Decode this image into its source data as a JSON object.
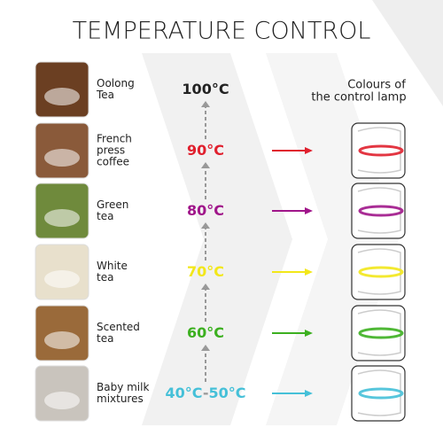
{
  "title": "TEMPERATURE CONTROL",
  "lamp_heading": [
    "Colours of",
    "the control lamp"
  ],
  "rows": [
    {
      "label": [
        "Oolong",
        "Tea"
      ],
      "temperature": [
        {
          "text": "100°C",
          "color": "#222222"
        }
      ],
      "photo": "#6b3f22"
    },
    {
      "label": [
        "French",
        "press",
        "coffee"
      ],
      "temperature": [
        {
          "text": "90°C",
          "color": "#e0202e"
        }
      ],
      "photo": "#8a5a3a",
      "lamp_color": "#e0202e"
    },
    {
      "label": [
        "Green",
        "tea"
      ],
      "temperature": [
        {
          "text": "80°C",
          "color": "#a0168a"
        }
      ],
      "photo": "#6f8a3c",
      "lamp_color": "#a0168a"
    },
    {
      "label": [
        "White",
        "tea"
      ],
      "temperature": [
        {
          "text": "70°C",
          "color": "#f2e71a"
        }
      ],
      "photo": "#e8e0cc",
      "lamp_color": "#f2e71a"
    },
    {
      "label": [
        "Scented",
        "tea"
      ],
      "temperature": [
        {
          "text": "60°C",
          "color": "#3cb020"
        }
      ],
      "photo": "#9a6a3a",
      "lamp_color": "#3cb020"
    },
    {
      "label": [
        "Baby milk",
        "mixtures"
      ],
      "temperature": [
        {
          "text": "40°C",
          "color": "#45c0d8"
        },
        {
          "text": "-",
          "color": "#999999"
        },
        {
          "text": "50°C",
          "color": "#45c0d8"
        }
      ],
      "photo": "#c9c4bd",
      "lamp_color": "#45c0d8"
    }
  ]
}
